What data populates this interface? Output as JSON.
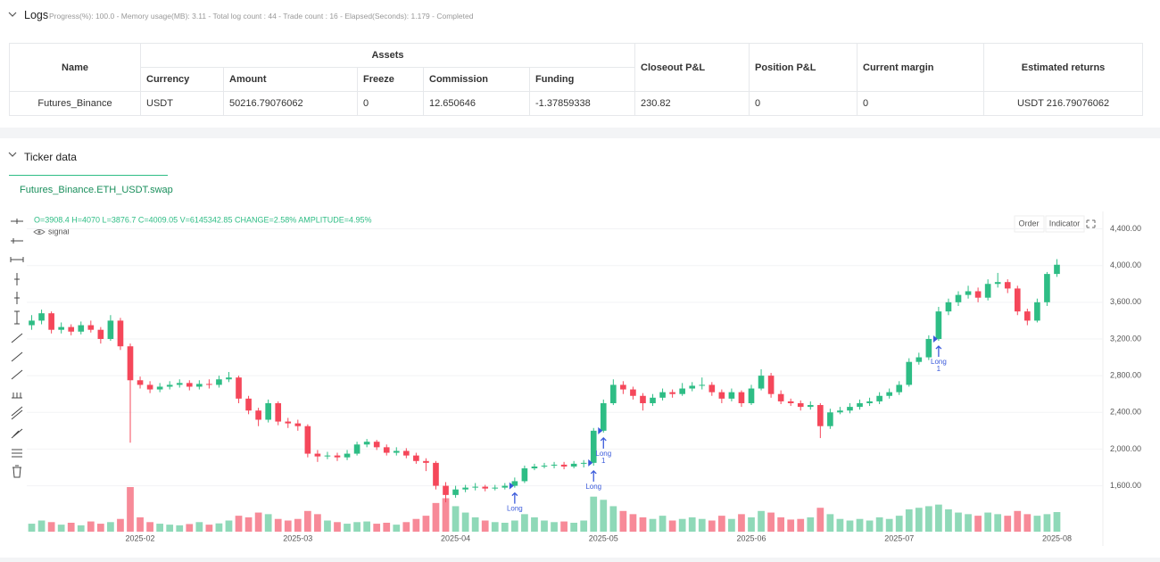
{
  "logs": {
    "title": "Logs",
    "status": "Progress(%): 100.0 - Memory usage(MB): 3.11 - Total log count : 44 - Trade count : 16 - Elapsed(Seconds): 1.179 - Completed"
  },
  "table": {
    "header_top": [
      "Name",
      "Assets",
      "Closeout P&L",
      "Position P&L",
      "Current margin",
      "Estimated returns"
    ],
    "header_sub": [
      "Currency",
      "Amount",
      "Freeze",
      "Commission",
      "Funding"
    ],
    "rows": [
      [
        "Futures_Binance",
        "USDT",
        "50216.79076062",
        "0",
        "12.650646",
        "-1.37859338",
        "230.82",
        "0",
        "0",
        "USDT 216.79076062"
      ]
    ]
  },
  "ticker": {
    "title": "Ticker data",
    "tab": "Futures_Binance.ETH_USDT.swap",
    "order": "Order",
    "indicator": "Indicator"
  },
  "chart_data": {
    "type": "candlestick",
    "legend": "O=3908.4 H=4070 L=3876.7 C=4009.05 V=6145342.85 CHANGE=2.58% AMPLITUDE=4.95%",
    "indicator": "signal",
    "up_color": "#2ebd85",
    "down_color": "#f5475a",
    "up_volume_color": "#8fd9b8",
    "down_volume_color": "#f78a98",
    "signal_color": "#3b5bdb",
    "ylim": [
      1100,
      4590
    ],
    "yticks": [
      {
        "value": 1600,
        "label": "1,600.00"
      },
      {
        "value": 2000,
        "label": "2,000.00"
      },
      {
        "value": 2400,
        "label": "2,400.00"
      },
      {
        "value": 2800,
        "label": "2,800.00"
      },
      {
        "value": 3200,
        "label": "3,200.00"
      },
      {
        "value": 3600,
        "label": "3,600.00"
      },
      {
        "value": 4000,
        "label": "4,000.00"
      },
      {
        "value": 4400,
        "label": "4,400.00"
      }
    ],
    "grid": true,
    "categories": [
      null,
      null,
      null,
      null,
      null,
      null,
      null,
      null,
      null,
      null,
      null,
      "2025-02",
      null,
      null,
      null,
      null,
      null,
      null,
      null,
      null,
      null,
      null,
      null,
      null,
      null,
      null,
      null,
      "2025-03",
      null,
      null,
      null,
      null,
      null,
      null,
      null,
      null,
      null,
      null,
      null,
      null,
      null,
      null,
      null,
      "2025-04",
      null,
      null,
      null,
      null,
      null,
      null,
      null,
      null,
      null,
      null,
      null,
      null,
      null,
      null,
      "2025-05",
      null,
      null,
      null,
      null,
      null,
      null,
      null,
      null,
      null,
      null,
      null,
      null,
      null,
      null,
      "2025-06",
      null,
      null,
      null,
      null,
      null,
      null,
      null,
      null,
      null,
      null,
      null,
      null,
      null,
      null,
      "2025-07",
      null,
      null,
      null,
      null,
      null,
      null,
      null,
      null,
      null,
      null,
      null,
      null,
      null,
      null,
      null,
      "2025-08"
    ],
    "candles": [
      [
        3350,
        3460,
        3300,
        3400
      ],
      [
        3400,
        3520,
        3360,
        3480
      ],
      [
        3480,
        3500,
        3260,
        3300
      ],
      [
        3300,
        3380,
        3260,
        3330
      ],
      [
        3330,
        3360,
        3240,
        3280
      ],
      [
        3280,
        3390,
        3250,
        3350
      ],
      [
        3350,
        3400,
        3270,
        3300
      ],
      [
        3300,
        3330,
        3150,
        3200
      ],
      [
        3200,
        3460,
        3180,
        3400
      ],
      [
        3400,
        3430,
        3080,
        3120
      ],
      [
        3120,
        3150,
        2070,
        2750
      ],
      [
        2750,
        2790,
        2660,
        2700
      ],
      [
        2700,
        2740,
        2610,
        2650
      ],
      [
        2650,
        2720,
        2620,
        2680
      ],
      [
        2680,
        2740,
        2650,
        2700
      ],
      [
        2700,
        2760,
        2670,
        2720
      ],
      [
        2720,
        2750,
        2640,
        2680
      ],
      [
        2680,
        2750,
        2650,
        2710
      ],
      [
        2710,
        2760,
        2660,
        2700
      ],
      [
        2700,
        2800,
        2670,
        2760
      ],
      [
        2760,
        2840,
        2730,
        2780
      ],
      [
        2780,
        2800,
        2500,
        2550
      ],
      [
        2550,
        2580,
        2380,
        2420
      ],
      [
        2420,
        2450,
        2250,
        2320
      ],
      [
        2320,
        2540,
        2290,
        2500
      ],
      [
        2500,
        2520,
        2260,
        2300
      ],
      [
        2300,
        2340,
        2230,
        2280
      ],
      [
        2280,
        2320,
        2200,
        2250
      ],
      [
        2250,
        2270,
        1910,
        1950
      ],
      [
        1950,
        1990,
        1860,
        1920
      ],
      [
        1920,
        1970,
        1890,
        1930
      ],
      [
        1930,
        1960,
        1870,
        1910
      ],
      [
        1910,
        1990,
        1880,
        1950
      ],
      [
        1950,
        2080,
        1930,
        2050
      ],
      [
        2050,
        2110,
        2020,
        2080
      ],
      [
        2080,
        2100,
        1990,
        2020
      ],
      [
        2020,
        2050,
        1930,
        1960
      ],
      [
        1960,
        2020,
        1930,
        1980
      ],
      [
        1980,
        2010,
        1900,
        1930
      ],
      [
        1930,
        1960,
        1840,
        1870
      ],
      [
        1870,
        1900,
        1760,
        1850
      ],
      [
        1850,
        1870,
        1560,
        1600
      ],
      [
        1600,
        1640,
        1420,
        1500
      ],
      [
        1500,
        1600,
        1470,
        1560
      ],
      [
        1560,
        1610,
        1530,
        1580
      ],
      [
        1580,
        1630,
        1550,
        1590
      ],
      [
        1590,
        1610,
        1540,
        1570
      ],
      [
        1570,
        1610,
        1550,
        1580
      ],
      [
        1580,
        1630,
        1560,
        1600
      ],
      [
        1600,
        1690,
        1580,
        1650
      ],
      [
        1650,
        1820,
        1630,
        1790
      ],
      [
        1790,
        1840,
        1770,
        1810
      ],
      [
        1810,
        1850,
        1790,
        1820
      ],
      [
        1820,
        1860,
        1790,
        1830
      ],
      [
        1830,
        1860,
        1780,
        1810
      ],
      [
        1810,
        1870,
        1790,
        1840
      ],
      [
        1840,
        1880,
        1800,
        1850
      ],
      [
        1850,
        2230,
        1820,
        2200
      ],
      [
        2200,
        2540,
        2180,
        2500
      ],
      [
        2500,
        2760,
        2480,
        2700
      ],
      [
        2700,
        2740,
        2600,
        2650
      ],
      [
        2650,
        2680,
        2540,
        2580
      ],
      [
        2580,
        2610,
        2420,
        2500
      ],
      [
        2500,
        2600,
        2470,
        2560
      ],
      [
        2560,
        2660,
        2530,
        2620
      ],
      [
        2620,
        2650,
        2560,
        2600
      ],
      [
        2600,
        2720,
        2580,
        2660
      ],
      [
        2660,
        2730,
        2630,
        2690
      ],
      [
        2690,
        2780,
        2650,
        2700
      ],
      [
        2700,
        2730,
        2580,
        2620
      ],
      [
        2620,
        2650,
        2500,
        2550
      ],
      [
        2550,
        2660,
        2520,
        2620
      ],
      [
        2620,
        2640,
        2460,
        2500
      ],
      [
        2500,
        2700,
        2480,
        2660
      ],
      [
        2660,
        2870,
        2640,
        2800
      ],
      [
        2800,
        2830,
        2560,
        2600
      ],
      [
        2600,
        2640,
        2490,
        2520
      ],
      [
        2520,
        2550,
        2470,
        2500
      ],
      [
        2500,
        2530,
        2420,
        2460
      ],
      [
        2460,
        2520,
        2430,
        2480
      ],
      [
        2480,
        2500,
        2120,
        2250
      ],
      [
        2250,
        2440,
        2220,
        2400
      ],
      [
        2400,
        2460,
        2380,
        2420
      ],
      [
        2420,
        2500,
        2390,
        2460
      ],
      [
        2460,
        2540,
        2430,
        2500
      ],
      [
        2500,
        2560,
        2470,
        2520
      ],
      [
        2520,
        2620,
        2490,
        2580
      ],
      [
        2580,
        2660,
        2550,
        2620
      ],
      [
        2620,
        2740,
        2590,
        2700
      ],
      [
        2700,
        2990,
        2680,
        2950
      ],
      [
        2950,
        3050,
        2920,
        3000
      ],
      [
        3000,
        3240,
        2970,
        3200
      ],
      [
        3200,
        3550,
        3180,
        3500
      ],
      [
        3500,
        3640,
        3460,
        3600
      ],
      [
        3600,
        3720,
        3560,
        3680
      ],
      [
        3680,
        3780,
        3640,
        3720
      ],
      [
        3720,
        3760,
        3600,
        3650
      ],
      [
        3650,
        3850,
        3620,
        3800
      ],
      [
        3800,
        3920,
        3760,
        3820
      ],
      [
        3820,
        3850,
        3700,
        3750
      ],
      [
        3750,
        3780,
        3460,
        3500
      ],
      [
        3500,
        3530,
        3350,
        3400
      ],
      [
        3400,
        3640,
        3380,
        3600
      ],
      [
        3600,
        3930,
        3560,
        3908.4
      ],
      [
        3908.4,
        4070,
        3876.7,
        4009.05
      ]
    ],
    "volume": [
      2.5,
      3.5,
      3.0,
      2.2,
      2.8,
      2.0,
      3.2,
      2.5,
      3.0,
      4.0,
      14.0,
      4.5,
      3.0,
      2.5,
      2.2,
      2.0,
      2.4,
      3.0,
      2.2,
      2.6,
      3.5,
      5.0,
      4.5,
      6.0,
      5.5,
      4.0,
      3.5,
      4.0,
      6.5,
      5.5,
      3.5,
      3.0,
      2.5,
      3.0,
      3.2,
      2.5,
      2.8,
      2.2,
      3.0,
      4.0,
      5.0,
      9.0,
      10.5,
      8.0,
      6.0,
      4.5,
      3.5,
      3.0,
      2.8,
      3.5,
      5.5,
      4.5,
      3.5,
      3.0,
      3.2,
      2.8,
      3.5,
      11.0,
      10.0,
      8.0,
      6.5,
      5.5,
      4.5,
      4.0,
      5.0,
      3.5,
      4.0,
      4.5,
      4.0,
      3.5,
      5.0,
      4.0,
      5.5,
      4.5,
      6.5,
      6.0,
      4.5,
      3.8,
      4.0,
      4.5,
      7.5,
      5.5,
      4.0,
      3.5,
      4.0,
      3.5,
      4.5,
      4.0,
      5.0,
      7.0,
      7.5,
      8.0,
      8.5,
      7.0,
      6.0,
      5.5,
      5.0,
      6.0,
      5.5,
      5.0,
      6.5,
      5.5,
      5.0,
      5.5,
      6.15
    ],
    "signals": [
      {
        "index": 49,
        "label": "Long"
      },
      {
        "index": 57,
        "label": "Long"
      },
      {
        "index": 58,
        "label": "Long",
        "qty": "1"
      },
      {
        "index": 92,
        "label": "Long",
        "qty": "1"
      }
    ]
  }
}
